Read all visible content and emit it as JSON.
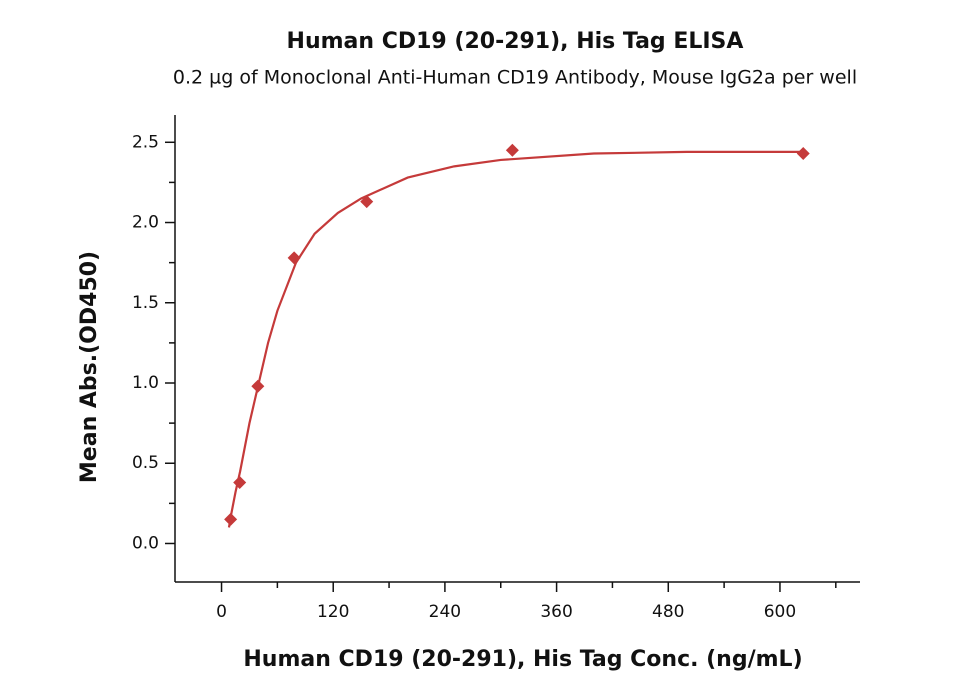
{
  "chart_data": {
    "type": "scatter",
    "title": "Human CD19 (20-291), His Tag ELISA",
    "subtitle": "0.2 µg of Monoclonal Anti-Human CD19 Antibody, Mouse IgG2a per well",
    "xlabel": "Human CD19 (20-291), His Tag Conc. (ng/mL)",
    "ylabel": "Mean Abs.(OD450)",
    "series": [
      {
        "style": "marker",
        "marker": "diamond",
        "color": "#c53a3a",
        "x": [
          9.77,
          19.5,
          39,
          78,
          156,
          312.5,
          625
        ],
        "values": [
          0.15,
          0.38,
          0.98,
          1.78,
          2.13,
          2.45,
          2.43
        ]
      },
      {
        "style": "line",
        "color": "#c53a3a",
        "x": [
          8,
          10,
          15,
          20,
          30,
          40,
          50,
          60,
          80,
          100,
          125,
          150,
          200,
          250,
          300,
          400,
          500,
          625
        ],
        "values": [
          0.1,
          0.17,
          0.32,
          0.45,
          0.75,
          1.0,
          1.25,
          1.45,
          1.75,
          1.93,
          2.06,
          2.15,
          2.28,
          2.35,
          2.39,
          2.43,
          2.44,
          2.44
        ]
      }
    ],
    "xlim": [
      -50,
      686
    ],
    "ylim": [
      -0.24,
      2.67
    ],
    "xticks": [
      0,
      120,
      240,
      360,
      480,
      600
    ],
    "xminorticks": [
      60,
      180,
      300,
      420,
      540,
      660
    ],
    "yticks": [
      {
        "value": 0,
        "label": "0.0"
      },
      {
        "value": 0.5,
        "label": "0.5"
      },
      {
        "value": 1,
        "label": "1.0"
      },
      {
        "value": 1.5,
        "label": "1.5"
      },
      {
        "value": 2,
        "label": "2.0"
      },
      {
        "value": 2.5,
        "label": "2.5"
      }
    ],
    "yminorticks": [
      0.25,
      0.75,
      1.25,
      1.75,
      2.25
    ],
    "grid": false
  }
}
